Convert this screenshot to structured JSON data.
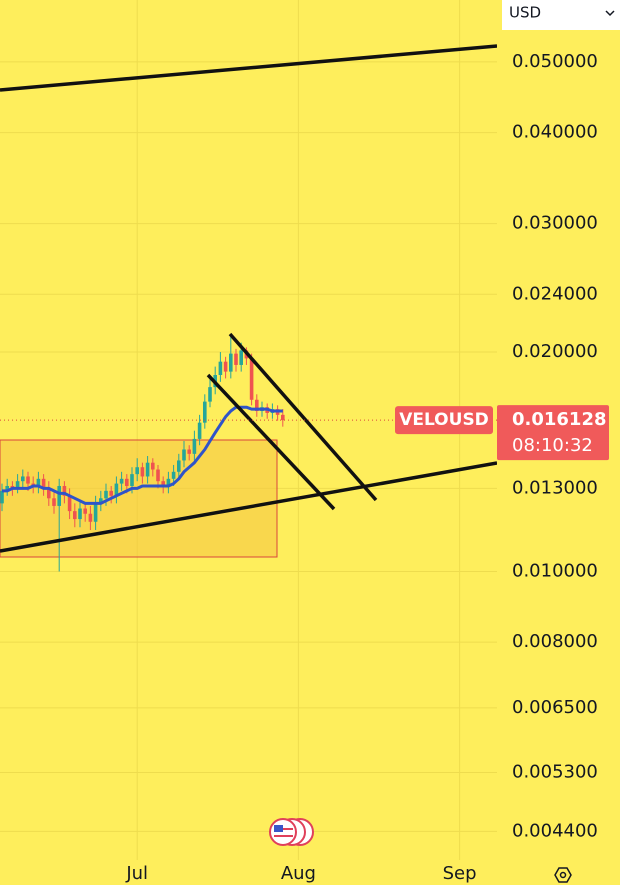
{
  "chart_data": {
    "type": "candlestick",
    "symbol": "VELOUSD",
    "currency": "USD",
    "countdown": "08:10:32",
    "last_price": 0.016128,
    "log_scale": true,
    "grid": true,
    "up_color": "#26a69a",
    "down_color": "#ef5350",
    "ylim": [
      0.00402,
      0.0608
    ],
    "yticks": [
      {
        "value": 0.05,
        "label": "0.050000"
      },
      {
        "value": 0.04,
        "label": "0.040000"
      },
      {
        "value": 0.03,
        "label": "0.030000"
      },
      {
        "value": 0.024,
        "label": "0.024000"
      },
      {
        "value": 0.02,
        "label": "0.020000"
      },
      {
        "value": 0.013,
        "label": "0.013000"
      },
      {
        "value": 0.01,
        "label": "0.010000"
      },
      {
        "value": 0.008,
        "label": "0.008000"
      },
      {
        "value": 0.0065,
        "label": "0.006500"
      },
      {
        "value": 0.0053,
        "label": "0.005300"
      },
      {
        "value": 0.0044,
        "label": "0.004400"
      }
    ],
    "categories": [
      null,
      null,
      null,
      null,
      null,
      null,
      null,
      null,
      null,
      null,
      null,
      null,
      null,
      null,
      null,
      null,
      null,
      null,
      null,
      null,
      null,
      null,
      null,
      null,
      null,
      null,
      "Jul",
      null,
      null,
      null,
      null,
      null,
      null,
      null,
      null,
      null,
      null,
      null,
      null,
      null,
      null,
      null,
      null,
      null,
      null,
      null,
      null,
      null,
      null,
      null,
      null,
      null,
      null,
      null,
      null,
      null,
      null,
      "Aug",
      null,
      null,
      null,
      null,
      null,
      null,
      null,
      null,
      null,
      null,
      null,
      null,
      null,
      null,
      null,
      null,
      null,
      null,
      null,
      null,
      null,
      null,
      null,
      null,
      null,
      null,
      null,
      null,
      null,
      null,
      "Sep",
      null,
      null,
      null,
      null,
      null,
      null,
      null
    ],
    "open": [
      0.0124,
      0.0129,
      0.0131,
      0.013,
      0.0133,
      0.0135,
      0.0132,
      0.0131,
      0.0134,
      0.013,
      0.0126,
      0.0123,
      0.0131,
      0.0127,
      0.0121,
      0.0118,
      0.0122,
      0.012,
      0.0117,
      0.0124,
      0.0126,
      0.0129,
      0.0127,
      0.0132,
      0.0134,
      0.0131,
      0.0136,
      0.0139,
      0.0135,
      0.0141,
      0.0138,
      0.0133,
      0.0131,
      0.0134,
      0.0137,
      0.0142,
      0.0147,
      0.0145,
      0.0152,
      0.016,
      0.0171,
      0.0179,
      0.0186,
      0.0194,
      0.0188,
      0.0199,
      0.0192,
      0.0201,
      0.0196,
      0.0172,
      0.0166,
      0.0168,
      0.0165,
      0.0167,
      0.0164,
      null,
      null,
      null,
      null,
      null,
      null,
      null,
      null,
      null,
      null,
      null,
      null,
      null,
      null,
      null,
      null,
      null,
      null,
      null,
      null,
      null,
      null,
      null,
      null,
      null,
      null,
      null,
      null,
      null,
      null,
      null,
      null,
      null,
      null,
      null,
      null,
      null,
      null,
      null,
      null,
      null
    ],
    "high": [
      0.0132,
      0.0134,
      0.0133,
      0.0136,
      0.0138,
      0.0137,
      0.0135,
      0.0137,
      0.0136,
      0.0133,
      0.0129,
      0.0134,
      0.0133,
      0.013,
      0.0124,
      0.0125,
      0.0124,
      0.0123,
      0.0127,
      0.0129,
      0.0132,
      0.0131,
      0.0135,
      0.0137,
      0.0136,
      0.0139,
      0.0143,
      0.0141,
      0.0144,
      0.0143,
      0.014,
      0.0135,
      0.0137,
      0.014,
      0.0145,
      0.0151,
      0.0149,
      0.0156,
      0.0164,
      0.0175,
      0.0184,
      0.0191,
      0.02,
      0.0197,
      0.021,
      0.0202,
      0.0206,
      0.0203,
      0.0199,
      0.0175,
      0.0171,
      0.017,
      0.017,
      0.0169,
      0.0167,
      null,
      null,
      null,
      null,
      null,
      null,
      null,
      null,
      null,
      null,
      null,
      null,
      null,
      null,
      null,
      null,
      null,
      null,
      null,
      null,
      null,
      null,
      null,
      null,
      null,
      null,
      null,
      null,
      null,
      null,
      null,
      null,
      null,
      null,
      null,
      null,
      null,
      null,
      null,
      null,
      null
    ],
    "low": [
      0.0121,
      0.0127,
      0.0127,
      0.0128,
      0.013,
      0.0129,
      0.0128,
      0.0128,
      0.0127,
      0.0123,
      0.012,
      0.01,
      0.0124,
      0.0118,
      0.0115,
      0.0115,
      0.0117,
      0.0114,
      0.0114,
      0.0121,
      0.0123,
      0.0124,
      0.0124,
      0.0129,
      0.0128,
      0.0128,
      0.0133,
      0.0132,
      0.0132,
      0.0135,
      0.013,
      0.0128,
      0.0128,
      0.0131,
      0.0134,
      0.0139,
      0.0142,
      0.0142,
      0.0149,
      0.0157,
      0.0168,
      0.0175,
      0.0182,
      0.0184,
      0.0184,
      0.0188,
      0.0188,
      0.0192,
      0.0169,
      0.0163,
      0.0163,
      0.0162,
      0.0162,
      0.0161,
      0.0158,
      null,
      null,
      null,
      null,
      null,
      null,
      null,
      null,
      null,
      null,
      null,
      null,
      null,
      null,
      null,
      null,
      null,
      null,
      null,
      null,
      null,
      null,
      null,
      null,
      null,
      null,
      null,
      null,
      null,
      null,
      null,
      null,
      null,
      null,
      null,
      null,
      null,
      null,
      null,
      null,
      null
    ],
    "close": [
      0.0129,
      0.0131,
      0.013,
      0.0133,
      0.0135,
      0.0132,
      0.0131,
      0.0134,
      0.013,
      0.0126,
      0.0123,
      0.0131,
      0.0127,
      0.0121,
      0.0118,
      0.0122,
      0.012,
      0.0117,
      0.0124,
      0.0126,
      0.0129,
      0.0127,
      0.0132,
      0.0134,
      0.0131,
      0.0136,
      0.0139,
      0.0135,
      0.0141,
      0.0138,
      0.0133,
      0.0131,
      0.0134,
      0.0137,
      0.0142,
      0.0147,
      0.0145,
      0.0152,
      0.016,
      0.0171,
      0.0179,
      0.0186,
      0.0194,
      0.0188,
      0.0199,
      0.0192,
      0.0201,
      0.0196,
      0.0172,
      0.0166,
      0.0168,
      0.0165,
      0.0167,
      0.0164,
      0.016128,
      null,
      null,
      null,
      null,
      null,
      null,
      null,
      null,
      null,
      null,
      null,
      null,
      null,
      null,
      null,
      null,
      null,
      null,
      null,
      null,
      null,
      null,
      null,
      null,
      null,
      null,
      null,
      null,
      null,
      null,
      null,
      null,
      null,
      null,
      null,
      null,
      null,
      null,
      null,
      null,
      null
    ],
    "moving_average": {
      "color": "#2f54c9",
      "values": [
        0.0129,
        0.0129,
        0.013,
        0.013,
        0.013,
        0.013,
        0.0131,
        0.0131,
        0.013,
        0.013,
        0.0129,
        0.0128,
        0.0128,
        0.0127,
        0.0126,
        0.0125,
        0.0124,
        0.0124,
        0.0124,
        0.0124,
        0.0125,
        0.0126,
        0.0127,
        0.0128,
        0.0129,
        0.013,
        0.013,
        0.0131,
        0.0131,
        0.0131,
        0.0131,
        0.0131,
        0.0131,
        0.0132,
        0.0134,
        0.0137,
        0.0139,
        0.0141,
        0.0144,
        0.0147,
        0.0151,
        0.0155,
        0.0159,
        0.0163,
        0.0166,
        0.0168,
        0.0168,
        0.0168,
        0.0167,
        0.0167,
        0.0167,
        0.0167,
        0.0166,
        0.0166,
        0.0166,
        null,
        null,
        null,
        null,
        null,
        null,
        null,
        null,
        null,
        null,
        null,
        null,
        null,
        null,
        null,
        null,
        null,
        null,
        null,
        null,
        null,
        null,
        null,
        null,
        null,
        null,
        null,
        null,
        null,
        null,
        null,
        null,
        null,
        null,
        null,
        null,
        null,
        null,
        null,
        null,
        null
      ]
    }
  }
}
